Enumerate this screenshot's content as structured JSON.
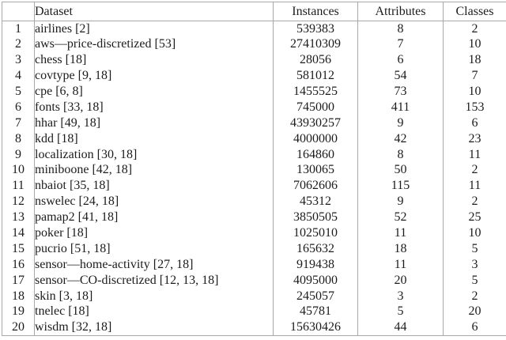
{
  "colors": {
    "background": "#ffffff",
    "text": "#1c1c1c",
    "rule": "#a8a8a8"
  },
  "table": {
    "headers": {
      "index": "",
      "dataset": "Dataset",
      "instances": "Instances",
      "attributes": "Attributes",
      "classes": "Classes"
    },
    "rows": [
      {
        "index": "1",
        "dataset": "airlines [2]",
        "instances": "539383",
        "attributes": "8",
        "classes": "2"
      },
      {
        "index": "2",
        "dataset": "aws—price-discretized [53]",
        "instances": "27410309",
        "attributes": "7",
        "classes": "10"
      },
      {
        "index": "3",
        "dataset": "chess [18]",
        "instances": "28056",
        "attributes": "6",
        "classes": "18"
      },
      {
        "index": "4",
        "dataset": "covtype [9, 18]",
        "instances": "581012",
        "attributes": "54",
        "classes": "7"
      },
      {
        "index": "5",
        "dataset": "cpe [6, 8]",
        "instances": "1455525",
        "attributes": "73",
        "classes": "10"
      },
      {
        "index": "6",
        "dataset": "fonts [33, 18]",
        "instances": "745000",
        "attributes": "411",
        "classes": "153"
      },
      {
        "index": "7",
        "dataset": "hhar [49, 18]",
        "instances": "43930257",
        "attributes": "9",
        "classes": "6"
      },
      {
        "index": "8",
        "dataset": "kdd [18]",
        "instances": "4000000",
        "attributes": "42",
        "classes": "23"
      },
      {
        "index": "9",
        "dataset": "localization [30, 18]",
        "instances": "164860",
        "attributes": "8",
        "classes": "11"
      },
      {
        "index": "10",
        "dataset": "miniboone [42, 18]",
        "instances": "130065",
        "attributes": "50",
        "classes": "2"
      },
      {
        "index": "11",
        "dataset": "nbaiot [35, 18]",
        "instances": "7062606",
        "attributes": "115",
        "classes": "11"
      },
      {
        "index": "12",
        "dataset": "nswelec [24, 18]",
        "instances": "45312",
        "attributes": "9",
        "classes": "2"
      },
      {
        "index": "13",
        "dataset": "pamap2 [41, 18]",
        "instances": "3850505",
        "attributes": "52",
        "classes": "25"
      },
      {
        "index": "14",
        "dataset": "poker [18]",
        "instances": "1025010",
        "attributes": "11",
        "classes": "10"
      },
      {
        "index": "15",
        "dataset": "pucrio [51, 18]",
        "instances": "165632",
        "attributes": "18",
        "classes": "5"
      },
      {
        "index": "16",
        "dataset": "sensor—home-activity [27, 18]",
        "instances": "919438",
        "attributes": "11",
        "classes": "3"
      },
      {
        "index": "17",
        "dataset": "sensor—CO-discretized [12, 13, 18]",
        "instances": "4095000",
        "attributes": "20",
        "classes": "5"
      },
      {
        "index": "18",
        "dataset": "skin [3, 18]",
        "instances": "245057",
        "attributes": "3",
        "classes": "2"
      },
      {
        "index": "19",
        "dataset": "tnelec [18]",
        "instances": "45781",
        "attributes": "5",
        "classes": "20"
      },
      {
        "index": "20",
        "dataset": "wisdm [32, 18]",
        "instances": "15630426",
        "attributes": "44",
        "classes": "6"
      }
    ]
  }
}
